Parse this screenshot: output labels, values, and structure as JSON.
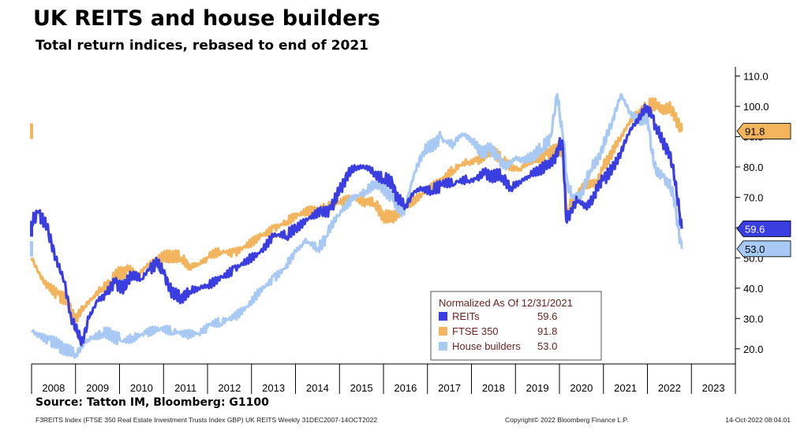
{
  "title": "UK REITS and house builders",
  "subtitle": "Total return indices, rebased to end of 2021",
  "source": "Source: Tatton IM, Bloomberg: G1100",
  "footer": {
    "left": "F3REITS Index (FTSE 350 Real Estate Investment Trusts Index GBP) UK REITS  Weekly 31DEC2007-14OCT2022",
    "middle": "Copyright© 2022 Bloomberg Finance L.P.",
    "right": "14-Oct-2022 08:04:01"
  },
  "chart_data": {
    "type": "line",
    "xlim": [
      2008,
      2024
    ],
    "ylim": [
      15,
      113
    ],
    "x_ticks": [
      "2008",
      "2009",
      "2010",
      "2011",
      "2012",
      "2013",
      "2014",
      "2015",
      "2016",
      "2017",
      "2018",
      "2019",
      "2020",
      "2021",
      "2022",
      "2023"
    ],
    "y_ticks": [
      "110.0",
      "100.0",
      "90.0",
      "80.0",
      "70.0",
      "60.0",
      "50.0",
      "40.0",
      "30.0",
      "20.0"
    ],
    "legend": {
      "title": "Normalized As Of 12/31/2021",
      "position": "bottom-center",
      "entries": [
        {
          "label": "REITs",
          "value": "59.6"
        },
        {
          "label": "FTSE 350",
          "value": "91.8"
        },
        {
          "label": "House builders",
          "value": "53.0"
        }
      ]
    },
    "series": [
      {
        "name": "REITs",
        "color": "#3a3ee0",
        "last_label": "59.6",
        "points": [
          [
            2008.0,
            62
          ],
          [
            2008.15,
            65
          ],
          [
            2008.35,
            60
          ],
          [
            2008.55,
            50
          ],
          [
            2008.75,
            42
          ],
          [
            2008.9,
            30
          ],
          [
            2009.05,
            25
          ],
          [
            2009.15,
            22
          ],
          [
            2009.3,
            30
          ],
          [
            2009.5,
            36
          ],
          [
            2009.7,
            38
          ],
          [
            2009.9,
            42
          ],
          [
            2010.1,
            40
          ],
          [
            2010.3,
            45
          ],
          [
            2010.5,
            43
          ],
          [
            2010.7,
            47
          ],
          [
            2010.85,
            48
          ],
          [
            2011.0,
            45
          ],
          [
            2011.1,
            42
          ],
          [
            2011.2,
            38
          ],
          [
            2011.4,
            37
          ],
          [
            2011.6,
            39
          ],
          [
            2011.8,
            40
          ],
          [
            2012.0,
            41
          ],
          [
            2012.3,
            44
          ],
          [
            2012.6,
            47
          ],
          [
            2012.9,
            50
          ],
          [
            2013.2,
            52
          ],
          [
            2013.5,
            57
          ],
          [
            2013.8,
            57
          ],
          [
            2014.0,
            60
          ],
          [
            2014.3,
            63
          ],
          [
            2014.6,
            65
          ],
          [
            2014.8,
            66
          ],
          [
            2015.0,
            72
          ],
          [
            2015.2,
            78
          ],
          [
            2015.4,
            80
          ],
          [
            2015.6,
            80
          ],
          [
            2015.8,
            78
          ],
          [
            2016.0,
            76
          ],
          [
            2016.2,
            75
          ],
          [
            2016.3,
            70
          ],
          [
            2016.5,
            67
          ],
          [
            2016.7,
            72
          ],
          [
            2016.9,
            73
          ],
          [
            2017.1,
            72
          ],
          [
            2017.3,
            74
          ],
          [
            2017.6,
            74
          ],
          [
            2017.9,
            75
          ],
          [
            2018.1,
            76
          ],
          [
            2018.3,
            78
          ],
          [
            2018.5,
            77
          ],
          [
            2018.7,
            77
          ],
          [
            2018.9,
            73
          ],
          [
            2019.1,
            75
          ],
          [
            2019.3,
            77
          ],
          [
            2019.5,
            79
          ],
          [
            2019.7,
            80
          ],
          [
            2019.85,
            82
          ],
          [
            2019.95,
            85
          ],
          [
            2020.0,
            88
          ],
          [
            2020.08,
            86
          ],
          [
            2020.15,
            63
          ],
          [
            2020.25,
            65
          ],
          [
            2020.4,
            69
          ],
          [
            2020.6,
            67
          ],
          [
            2020.8,
            70
          ],
          [
            2020.9,
            75
          ],
          [
            2021.0,
            76
          ],
          [
            2021.2,
            79
          ],
          [
            2021.4,
            85
          ],
          [
            2021.6,
            92
          ],
          [
            2021.8,
            96
          ],
          [
            2022.0,
            100
          ],
          [
            2022.1,
            97
          ],
          [
            2022.2,
            93
          ],
          [
            2022.35,
            88
          ],
          [
            2022.5,
            85
          ],
          [
            2022.6,
            78
          ],
          [
            2022.7,
            68
          ],
          [
            2022.78,
            59.6
          ]
        ]
      },
      {
        "name": "FTSE 350",
        "color": "#f2b45c",
        "last_label": "91.8",
        "points": [
          [
            2008.0,
            50
          ],
          [
            2008.2,
            44
          ],
          [
            2008.4,
            40
          ],
          [
            2008.6,
            38
          ],
          [
            2008.8,
            36
          ],
          [
            2008.9,
            32
          ],
          [
            2009.0,
            30
          ],
          [
            2009.2,
            34
          ],
          [
            2009.4,
            37
          ],
          [
            2009.6,
            40
          ],
          [
            2009.8,
            42
          ],
          [
            2010.0,
            45
          ],
          [
            2010.2,
            46
          ],
          [
            2010.4,
            44
          ],
          [
            2010.6,
            47
          ],
          [
            2010.8,
            49
          ],
          [
            2011.0,
            50
          ],
          [
            2011.2,
            51
          ],
          [
            2011.4,
            50
          ],
          [
            2011.6,
            47
          ],
          [
            2011.8,
            48
          ],
          [
            2012.0,
            50
          ],
          [
            2012.3,
            52
          ],
          [
            2012.6,
            52
          ],
          [
            2012.9,
            55
          ],
          [
            2013.2,
            58
          ],
          [
            2013.5,
            60
          ],
          [
            2013.8,
            62
          ],
          [
            2014.1,
            64
          ],
          [
            2014.4,
            65
          ],
          [
            2014.7,
            66
          ],
          [
            2015.0,
            68
          ],
          [
            2015.3,
            70
          ],
          [
            2015.6,
            69
          ],
          [
            2015.8,
            68
          ],
          [
            2016.0,
            64
          ],
          [
            2016.2,
            63
          ],
          [
            2016.4,
            66
          ],
          [
            2016.7,
            70
          ],
          [
            2017.0,
            73
          ],
          [
            2017.3,
            76
          ],
          [
            2017.6,
            79
          ],
          [
            2017.9,
            81
          ],
          [
            2018.1,
            82
          ],
          [
            2018.3,
            84
          ],
          [
            2018.5,
            86
          ],
          [
            2018.7,
            82
          ],
          [
            2018.9,
            80
          ],
          [
            2019.1,
            79
          ],
          [
            2019.3,
            82
          ],
          [
            2019.5,
            83
          ],
          [
            2019.7,
            84
          ],
          [
            2019.85,
            85
          ],
          [
            2020.0,
            86
          ],
          [
            2020.1,
            84
          ],
          [
            2020.17,
            64
          ],
          [
            2020.3,
            69
          ],
          [
            2020.5,
            73
          ],
          [
            2020.7,
            75
          ],
          [
            2020.85,
            74
          ],
          [
            2021.0,
            80
          ],
          [
            2021.2,
            85
          ],
          [
            2021.4,
            90
          ],
          [
            2021.6,
            95
          ],
          [
            2021.8,
            98
          ],
          [
            2022.0,
            100
          ],
          [
            2022.2,
            101
          ],
          [
            2022.35,
            98
          ],
          [
            2022.5,
            100
          ],
          [
            2022.6,
            98
          ],
          [
            2022.7,
            94
          ],
          [
            2022.78,
            91.8
          ]
        ]
      },
      {
        "name": "House builders",
        "color": "#a9c9f5",
        "last_label": "53.0",
        "points": [
          [
            2008.0,
            26
          ],
          [
            2008.2,
            24
          ],
          [
            2008.4,
            23
          ],
          [
            2008.6,
            21
          ],
          [
            2008.8,
            20
          ],
          [
            2009.0,
            18
          ],
          [
            2009.2,
            22
          ],
          [
            2009.4,
            24
          ],
          [
            2009.6,
            25
          ],
          [
            2009.8,
            25
          ],
          [
            2010.0,
            23
          ],
          [
            2010.3,
            24
          ],
          [
            2010.6,
            25
          ],
          [
            2010.9,
            26
          ],
          [
            2011.2,
            25
          ],
          [
            2011.5,
            24
          ],
          [
            2011.8,
            25
          ],
          [
            2012.0,
            27
          ],
          [
            2012.3,
            28
          ],
          [
            2012.6,
            30
          ],
          [
            2012.9,
            34
          ],
          [
            2013.2,
            40
          ],
          [
            2013.5,
            44
          ],
          [
            2013.8,
            48
          ],
          [
            2014.0,
            52
          ],
          [
            2014.2,
            55
          ],
          [
            2014.5,
            53
          ],
          [
            2014.7,
            57
          ],
          [
            2015.0,
            64
          ],
          [
            2015.3,
            69
          ],
          [
            2015.6,
            72
          ],
          [
            2015.8,
            75
          ],
          [
            2016.0,
            73
          ],
          [
            2016.2,
            70
          ],
          [
            2016.35,
            65
          ],
          [
            2016.5,
            67
          ],
          [
            2016.7,
            78
          ],
          [
            2016.9,
            85
          ],
          [
            2017.1,
            87
          ],
          [
            2017.3,
            90
          ],
          [
            2017.6,
            88
          ],
          [
            2017.8,
            91
          ],
          [
            2018.0,
            89
          ],
          [
            2018.2,
            85
          ],
          [
            2018.4,
            86
          ],
          [
            2018.6,
            83
          ],
          [
            2018.8,
            80
          ],
          [
            2019.0,
            83
          ],
          [
            2019.2,
            82
          ],
          [
            2019.4,
            84
          ],
          [
            2019.6,
            86
          ],
          [
            2019.8,
            90
          ],
          [
            2019.95,
            104
          ],
          [
            2020.0,
            98
          ],
          [
            2020.1,
            88
          ],
          [
            2020.18,
            74
          ],
          [
            2020.3,
            70
          ],
          [
            2020.5,
            71
          ],
          [
            2020.7,
            79
          ],
          [
            2020.85,
            82
          ],
          [
            2021.0,
            87
          ],
          [
            2021.2,
            95
          ],
          [
            2021.4,
            104
          ],
          [
            2021.6,
            98
          ],
          [
            2021.8,
            95
          ],
          [
            2022.0,
            97
          ],
          [
            2022.1,
            85
          ],
          [
            2022.2,
            78
          ],
          [
            2022.35,
            77
          ],
          [
            2022.5,
            74
          ],
          [
            2022.6,
            70
          ],
          [
            2022.7,
            60
          ],
          [
            2022.78,
            53.0
          ]
        ]
      }
    ]
  }
}
